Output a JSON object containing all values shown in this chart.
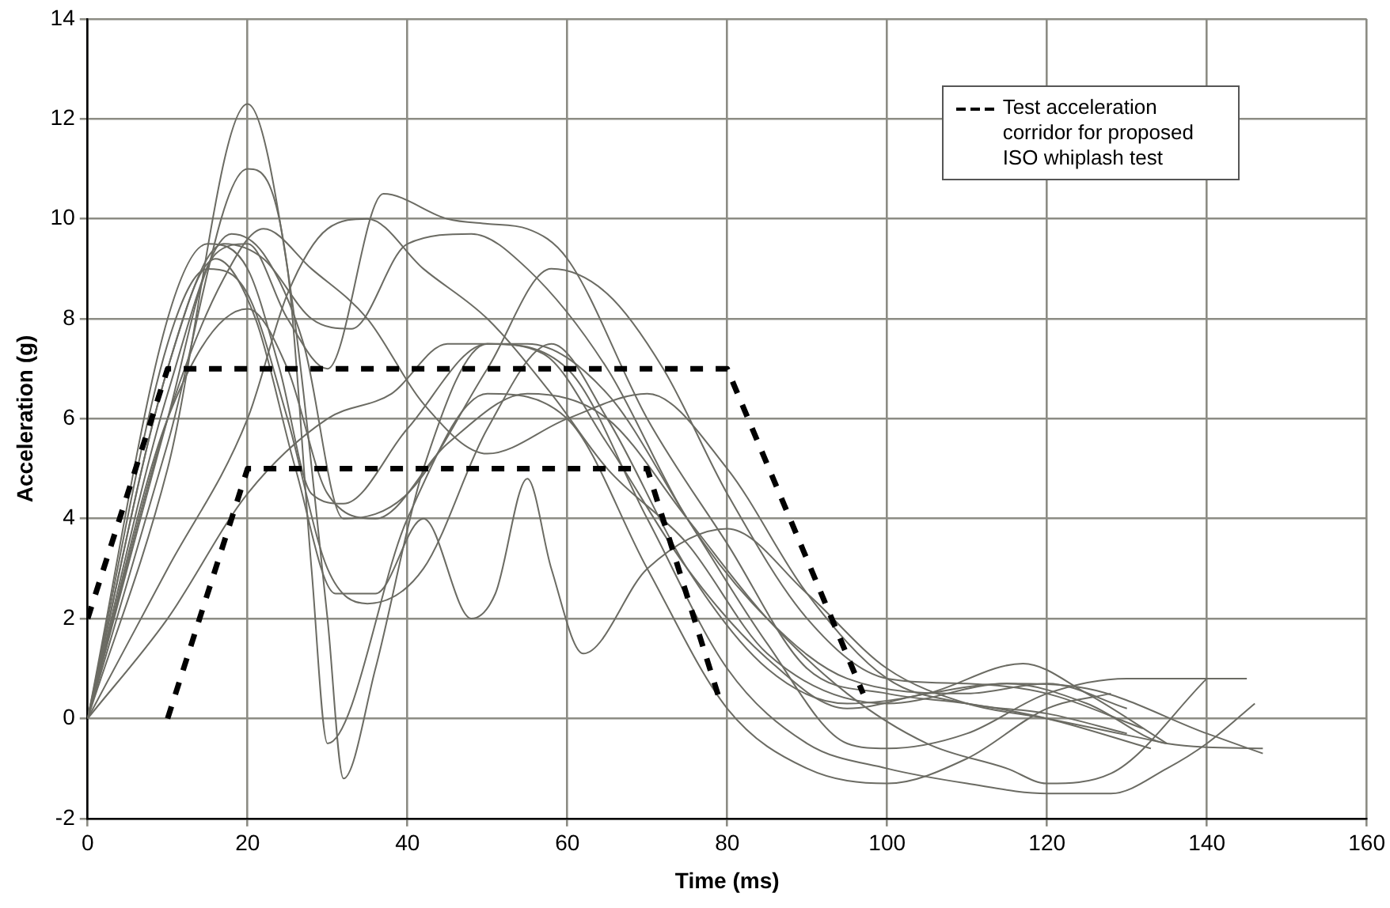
{
  "chart_data": {
    "type": "line",
    "xlabel": "Time (ms)",
    "ylabel": "Acceleration (g)",
    "xlim": [
      0,
      160
    ],
    "xticks": [
      0,
      20,
      40,
      60,
      80,
      100,
      120,
      140,
      160
    ],
    "ylim": [
      -2,
      14
    ],
    "yticks": [
      -2,
      0,
      2,
      4,
      6,
      8,
      10,
      12,
      14
    ],
    "grid": true,
    "legend": "top right",
    "marker": "none",
    "series": [
      {
        "name": "Test acceleration corridor for proposed ISO whiplash test",
        "color": "#000000",
        "line_style": "dashed",
        "x": [
          0,
          10,
          80,
          97
        ],
        "values": [
          2,
          7,
          7,
          0.5
        ]
      },
      {
        "color": "#000000",
        "line_style": "dashed",
        "x": [
          10,
          20,
          70,
          79
        ],
        "values": [
          0,
          5,
          5,
          0.4
        ]
      },
      {
        "color": "#6b6b63",
        "x": [
          0,
          10,
          20,
          25,
          30,
          32,
          36,
          42,
          50,
          60,
          70,
          80,
          90,
          100,
          110,
          120,
          128,
          135,
          140,
          146
        ],
        "values": [
          0,
          5,
          12.3,
          9,
          2,
          -1.2,
          1,
          5,
          7.5,
          7,
          4,
          1,
          -0.5,
          -1,
          -1.3,
          -1.5,
          -1.5,
          -1,
          -0.5,
          0.3
        ]
      },
      {
        "color": "#6b6b63",
        "x": [
          0,
          10,
          20,
          25,
          28,
          30,
          40,
          50,
          60,
          70,
          80,
          90,
          100,
          110,
          120,
          128
        ],
        "values": [
          0,
          5.5,
          11,
          9,
          3,
          -0.5,
          4,
          6.5,
          6,
          3,
          0.2,
          -1,
          -1.3,
          -0.8,
          0.2,
          0.5
        ]
      },
      {
        "color": "#6b6b63",
        "x": [
          0,
          10,
          16,
          20,
          25,
          30,
          37,
          45,
          50,
          55,
          60,
          70,
          80,
          90,
          100,
          110,
          120,
          133
        ],
        "values": [
          0,
          6,
          9.3,
          9.5,
          8,
          7,
          10.5,
          10,
          9.9,
          9.8,
          9.2,
          6,
          3.5,
          1,
          0.5,
          0.3,
          0,
          -0.6
        ]
      },
      {
        "color": "#6b6b63",
        "x": [
          0,
          10,
          17,
          22,
          28,
          33,
          40,
          48,
          55,
          65,
          75,
          85,
          95,
          110,
          120,
          130
        ],
        "values": [
          0,
          7,
          9.5,
          9.2,
          8,
          7.8,
          9.5,
          9.7,
          9,
          7,
          4,
          2,
          0.8,
          0.5,
          0.7,
          0.2
        ]
      },
      {
        "color": "#6b6b63",
        "x": [
          0,
          10,
          18,
          22,
          27,
          32,
          40,
          50,
          58,
          65,
          72,
          80,
          90,
          100,
          110,
          120,
          132
        ],
        "values": [
          0,
          6.5,
          9.7,
          9.3,
          7.5,
          4,
          4.5,
          7,
          9,
          8.5,
          7,
          4.5,
          2,
          0.8,
          0.7,
          0.5,
          -0.2
        ]
      },
      {
        "color": "#6b6b63",
        "x": [
          0,
          10,
          15,
          20,
          25,
          30,
          35,
          42,
          50,
          58,
          65,
          75,
          85,
          95,
          105,
          117,
          125,
          135
        ],
        "values": [
          0,
          7.5,
          9,
          8.5,
          6,
          3,
          2.3,
          3,
          5.8,
          7.5,
          6,
          3,
          1,
          0.3,
          0.5,
          1.1,
          0.5,
          -0.5
        ]
      },
      {
        "color": "#6b6b63",
        "x": [
          0,
          10,
          16,
          21,
          26,
          31,
          36,
          42,
          48,
          51,
          55,
          58,
          62,
          70,
          80,
          90,
          100,
          110,
          120,
          135
        ],
        "values": [
          0,
          7,
          9.2,
          8,
          5,
          2.5,
          2.5,
          4,
          2,
          2.5,
          4.8,
          3,
          1.3,
          3,
          3.8,
          2.5,
          1,
          0.3,
          0,
          -0.5
        ]
      },
      {
        "color": "#6b6b63",
        "x": [
          0,
          10,
          20,
          25,
          30,
          36,
          45,
          55,
          65,
          75,
          85,
          95,
          105,
          115,
          120,
          128,
          140
        ],
        "values": [
          0,
          6,
          8.2,
          7,
          4.5,
          4,
          5.5,
          6.5,
          6,
          4,
          2,
          0.5,
          -0.5,
          -1,
          -1.3,
          -1.1,
          0.8
        ]
      },
      {
        "color": "#6b6b63",
        "x": [
          0,
          10,
          20,
          30,
          38,
          45,
          55,
          65,
          75,
          85,
          95,
          100,
          110,
          120,
          130,
          145
        ],
        "values": [
          0,
          2,
          4.5,
          6,
          6.5,
          7.5,
          7.5,
          6.5,
          4,
          1.5,
          -0.5,
          -0.6,
          -0.3,
          0.5,
          0.8,
          0.8
        ]
      },
      {
        "color": "#6b6b63",
        "x": [
          0,
          10,
          20,
          25,
          30,
          35,
          42,
          50,
          58,
          65,
          75,
          85,
          100,
          115,
          125,
          140,
          147
        ],
        "values": [
          0,
          3,
          6,
          8.5,
          9.8,
          10,
          9,
          8,
          6.5,
          5,
          3.5,
          1.3,
          0.3,
          0.7,
          0.6,
          -0.3,
          -0.7
        ]
      },
      {
        "color": "#6b6b63",
        "x": [
          0,
          10,
          15,
          20,
          24,
          28,
          32,
          40,
          50,
          57,
          65,
          75,
          85,
          95,
          105,
          115,
          125,
          135,
          147
        ],
        "values": [
          0,
          8,
          9.5,
          9,
          7,
          4.5,
          4.3,
          5.8,
          7.5,
          7.3,
          5.5,
          3,
          1.2,
          0.2,
          0.5,
          0.7,
          0.3,
          -0.5,
          -0.6
        ]
      },
      {
        "color": "#6b6b63",
        "x": [
          0,
          10,
          17,
          22,
          28,
          35,
          42,
          50,
          60,
          70,
          80,
          90,
          100,
          110,
          120,
          130
        ],
        "values": [
          0,
          6,
          8.8,
          9.8,
          9,
          8,
          6.3,
          5.3,
          6,
          6.5,
          5,
          2.5,
          0.8,
          0.3,
          0.1,
          -0.3
        ]
      }
    ]
  }
}
